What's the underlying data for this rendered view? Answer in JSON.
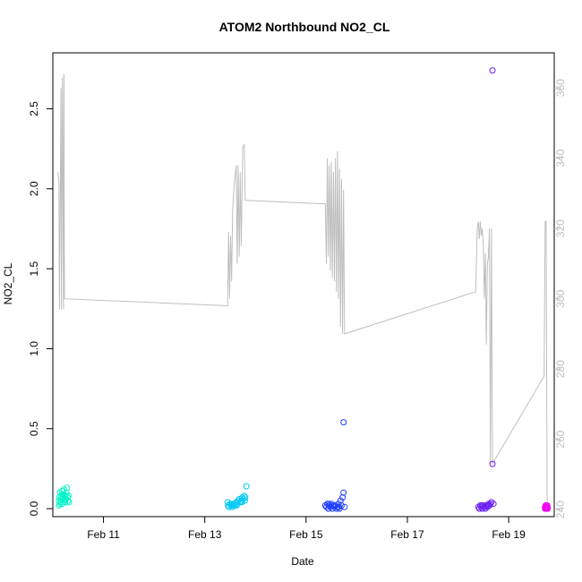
{
  "chart_data": {
    "type": "scatter",
    "title": "ATOM2 Northbound NO2_CL",
    "xlabel": "Date",
    "ylabel": "NO2_CL",
    "x_unit": "days in February",
    "xlim": [
      10.0,
      19.9
    ],
    "ylim": [
      -0.05,
      2.85
    ],
    "ylim_right": [
      238,
      370
    ],
    "x_ticks": [
      {
        "value": 11,
        "label": "Feb 11"
      },
      {
        "value": 13,
        "label": "Feb 13"
      },
      {
        "value": 15,
        "label": "Feb 15"
      },
      {
        "value": 17,
        "label": "Feb 17"
      },
      {
        "value": 19,
        "label": "Feb 19"
      }
    ],
    "y_ticks": [
      {
        "value": 0.0,
        "label": "0.0"
      },
      {
        "value": 0.5,
        "label": "0.5"
      },
      {
        "value": 1.0,
        "label": "1.0"
      },
      {
        "value": 1.5,
        "label": "1.5"
      },
      {
        "value": 2.0,
        "label": "2.0"
      },
      {
        "value": 2.5,
        "label": "2.5"
      }
    ],
    "y_ticks_right": [
      {
        "value": 240,
        "label": "240"
      },
      {
        "value": 260,
        "label": "260"
      },
      {
        "value": 280,
        "label": "280"
      },
      {
        "value": 300,
        "label": "300"
      },
      {
        "value": 320,
        "label": "320"
      },
      {
        "value": 340,
        "label": "340"
      },
      {
        "value": 360,
        "label": "360"
      }
    ],
    "line_color": "#bebebe",
    "series": [
      {
        "color": "#00f5c8",
        "points": [
          [
            10.12,
            0.02
          ],
          [
            10.12,
            0.05
          ],
          [
            10.13,
            0.07
          ],
          [
            10.14,
            0.1
          ],
          [
            10.15,
            0.04
          ],
          [
            10.16,
            0.08
          ],
          [
            10.17,
            0.06
          ],
          [
            10.18,
            0.11
          ],
          [
            10.19,
            0.03
          ],
          [
            10.2,
            0.07
          ],
          [
            10.21,
            0.09
          ],
          [
            10.22,
            0.12
          ],
          [
            10.23,
            0.05
          ],
          [
            10.24,
            0.04
          ],
          [
            10.25,
            0.08
          ],
          [
            10.26,
            0.06
          ],
          [
            10.27,
            0.1
          ],
          [
            10.28,
            0.13
          ],
          [
            10.29,
            0.07
          ],
          [
            10.3,
            0.05
          ],
          [
            10.31,
            0.08
          ],
          [
            10.32,
            0.04
          ],
          [
            10.14,
            0.03
          ],
          [
            10.19,
            0.09
          ]
        ]
      },
      {
        "color": "#00c8f5",
        "points": [
          [
            13.45,
            0.04
          ],
          [
            13.46,
            0.02
          ],
          [
            13.48,
            0.01
          ],
          [
            13.5,
            0.03
          ],
          [
            13.52,
            0.02
          ],
          [
            13.54,
            0.01
          ],
          [
            13.56,
            0.02
          ],
          [
            13.58,
            0.03
          ],
          [
            13.6,
            0.02
          ],
          [
            13.62,
            0.04
          ],
          [
            13.64,
            0.03
          ],
          [
            13.66,
            0.05
          ],
          [
            13.68,
            0.06
          ],
          [
            13.7,
            0.04
          ],
          [
            13.72,
            0.05
          ],
          [
            13.74,
            0.07
          ],
          [
            13.76,
            0.06
          ],
          [
            13.78,
            0.08
          ],
          [
            13.8,
            0.07
          ],
          [
            13.82,
            0.14
          ],
          [
            13.53,
            0.03
          ],
          [
            13.63,
            0.02
          ],
          [
            13.73,
            0.04
          ],
          [
            13.79,
            0.05
          ]
        ]
      },
      {
        "color": "#1e3cff",
        "points": [
          [
            15.38,
            0.02
          ],
          [
            15.4,
            0.01
          ],
          [
            15.42,
            0.03
          ],
          [
            15.44,
            0.0
          ],
          [
            15.46,
            0.02
          ],
          [
            15.48,
            0.01
          ],
          [
            15.5,
            0.03
          ],
          [
            15.52,
            0.0
          ],
          [
            15.54,
            0.02
          ],
          [
            15.56,
            0.01
          ],
          [
            15.58,
            0.02
          ],
          [
            15.6,
            0.0
          ],
          [
            15.62,
            0.01
          ],
          [
            15.64,
            0.03
          ],
          [
            15.66,
            0.0
          ],
          [
            15.68,
            0.05
          ],
          [
            15.7,
            0.02
          ],
          [
            15.72,
            0.07
          ],
          [
            15.74,
            0.1
          ],
          [
            15.74,
            0.54
          ],
          [
            15.76,
            0.01
          ],
          [
            15.45,
            0.03
          ],
          [
            15.55,
            0.02
          ],
          [
            15.65,
            0.01
          ]
        ]
      },
      {
        "color": "#6a1ef5",
        "points": [
          [
            18.4,
            0.01
          ],
          [
            18.42,
            0.0
          ],
          [
            18.44,
            0.02
          ],
          [
            18.46,
            0.01
          ],
          [
            18.48,
            0.0
          ],
          [
            18.5,
            0.02
          ],
          [
            18.52,
            0.01
          ],
          [
            18.54,
            0.0
          ],
          [
            18.56,
            0.02
          ],
          [
            18.58,
            0.01
          ],
          [
            18.6,
            0.03
          ],
          [
            18.62,
            0.02
          ],
          [
            18.64,
            0.03
          ],
          [
            18.66,
            0.04
          ],
          [
            18.68,
            0.28
          ],
          [
            18.68,
            2.74
          ],
          [
            18.7,
            0.03
          ],
          [
            18.53,
            0.01
          ],
          [
            18.47,
            0.02
          ],
          [
            18.59,
            0.02
          ]
        ]
      },
      {
        "color": "#f000f0",
        "points": [
          [
            19.72,
            0.0
          ],
          [
            19.73,
            0.01
          ],
          [
            19.74,
            0.02
          ],
          [
            19.75,
            0.0
          ],
          [
            19.76,
            0.01
          ],
          [
            19.77,
            0.0
          ],
          [
            19.73,
            0.02
          ],
          [
            19.74,
            0.0
          ],
          [
            19.75,
            0.01
          ],
          [
            19.76,
            0.02
          ],
          [
            19.72,
            0.01
          ],
          [
            19.77,
            0.01
          ]
        ]
      }
    ],
    "line_series": [
      [
        10.1,
        336
      ],
      [
        10.12,
        333
      ],
      [
        10.13,
        297
      ],
      [
        10.16,
        360
      ],
      [
        10.17,
        297
      ],
      [
        10.19,
        363
      ],
      [
        10.21,
        297
      ],
      [
        10.22,
        364
      ],
      [
        10.23,
        300
      ],
      [
        13.45,
        298
      ],
      [
        13.47,
        319
      ],
      [
        13.49,
        300
      ],
      [
        13.51,
        318
      ],
      [
        13.53,
        305
      ],
      [
        13.55,
        325
      ],
      [
        13.58,
        332
      ],
      [
        13.62,
        338
      ],
      [
        13.64,
        310
      ],
      [
        13.66,
        338
      ],
      [
        13.68,
        312
      ],
      [
        13.7,
        336
      ],
      [
        13.72,
        315
      ],
      [
        13.75,
        343
      ],
      [
        13.78,
        344
      ],
      [
        13.8,
        328
      ],
      [
        15.38,
        327
      ],
      [
        15.4,
        310
      ],
      [
        15.42,
        340
      ],
      [
        15.44,
        312
      ],
      [
        15.46,
        338
      ],
      [
        15.48,
        308
      ],
      [
        15.5,
        339
      ],
      [
        15.52,
        306
      ],
      [
        15.54,
        336
      ],
      [
        15.56,
        305
      ],
      [
        15.58,
        340
      ],
      [
        15.6,
        302
      ],
      [
        15.62,
        342
      ],
      [
        15.64,
        300
      ],
      [
        15.66,
        337
      ],
      [
        15.68,
        292
      ],
      [
        15.7,
        334
      ],
      [
        15.72,
        290
      ],
      [
        15.74,
        331
      ],
      [
        15.76,
        290
      ],
      [
        18.35,
        302
      ],
      [
        18.38,
        320
      ],
      [
        18.4,
        322
      ],
      [
        18.42,
        317
      ],
      [
        18.44,
        322
      ],
      [
        18.46,
        318
      ],
      [
        18.48,
        320
      ],
      [
        18.5,
        315
      ],
      [
        18.52,
        300
      ],
      [
        18.54,
        313
      ],
      [
        18.56,
        287
      ],
      [
        18.58,
        310
      ],
      [
        18.6,
        312
      ],
      [
        18.62,
        320
      ],
      [
        18.64,
        253
      ],
      [
        18.66,
        320
      ],
      [
        18.68,
        253
      ],
      [
        19.7,
        278
      ],
      [
        19.72,
        322
      ],
      [
        19.74,
        322
      ],
      [
        19.76,
        240
      ]
    ]
  }
}
